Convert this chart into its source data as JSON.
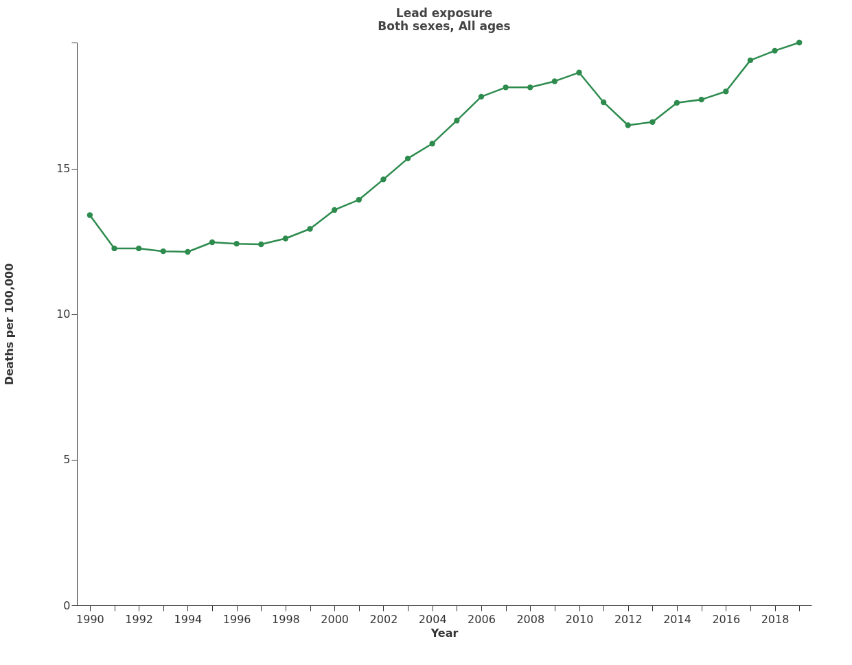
{
  "chart_data": {
    "type": "line",
    "title": [
      "Lead exposure",
      "Both sexes, All ages"
    ],
    "xlabel": "Year",
    "ylabel": "Deaths per 100,000",
    "x": [
      1990,
      1991,
      1992,
      1993,
      1994,
      1995,
      1996,
      1997,
      1998,
      1999,
      2000,
      2001,
      2002,
      2003,
      2004,
      2005,
      2006,
      2007,
      2008,
      2009,
      2010,
      2011,
      2012,
      2013,
      2014,
      2015,
      2016,
      2017,
      2018,
      2019
    ],
    "series": [
      {
        "color": "#2e8b4e",
        "values": [
          13.4,
          12.26,
          12.26,
          12.16,
          12.14,
          12.47,
          12.42,
          12.4,
          12.6,
          12.93,
          13.58,
          13.93,
          14.63,
          15.35,
          15.86,
          16.65,
          17.47,
          17.79,
          17.79,
          18.0,
          18.3,
          17.28,
          16.49,
          16.6,
          17.26,
          17.37,
          17.65,
          18.72,
          19.05,
          19.33
        ]
      }
    ],
    "xlim": [
      1989.47,
      2019.5
    ],
    "xticks": [
      1990,
      {
        "value": 1991,
        "label": null
      },
      1992,
      {
        "value": 1993,
        "label": null
      },
      1994,
      {
        "value": 1995,
        "label": null
      },
      1996,
      {
        "value": 1997,
        "label": null
      },
      1998,
      {
        "value": 1999,
        "label": null
      },
      2000,
      {
        "value": 2001,
        "label": null
      },
      2002,
      {
        "value": 2003,
        "label": null
      },
      2004,
      {
        "value": 2005,
        "label": null
      },
      2006,
      {
        "value": 2007,
        "label": null
      },
      2008,
      {
        "value": 2009,
        "label": null
      },
      2010,
      {
        "value": 2011,
        "label": null
      },
      2012,
      {
        "value": 2013,
        "label": null
      },
      2014,
      {
        "value": 2015,
        "label": null
      },
      2016,
      {
        "value": 2017,
        "label": null
      },
      2018,
      {
        "value": 2019,
        "label": null
      }
    ],
    "ylim": [
      0,
      19.33
    ],
    "yticks": [
      0,
      5,
      10,
      15,
      {
        "value": 19.33,
        "label": null
      }
    ],
    "grid": false,
    "marker": "circle",
    "line_style": "solid"
  }
}
